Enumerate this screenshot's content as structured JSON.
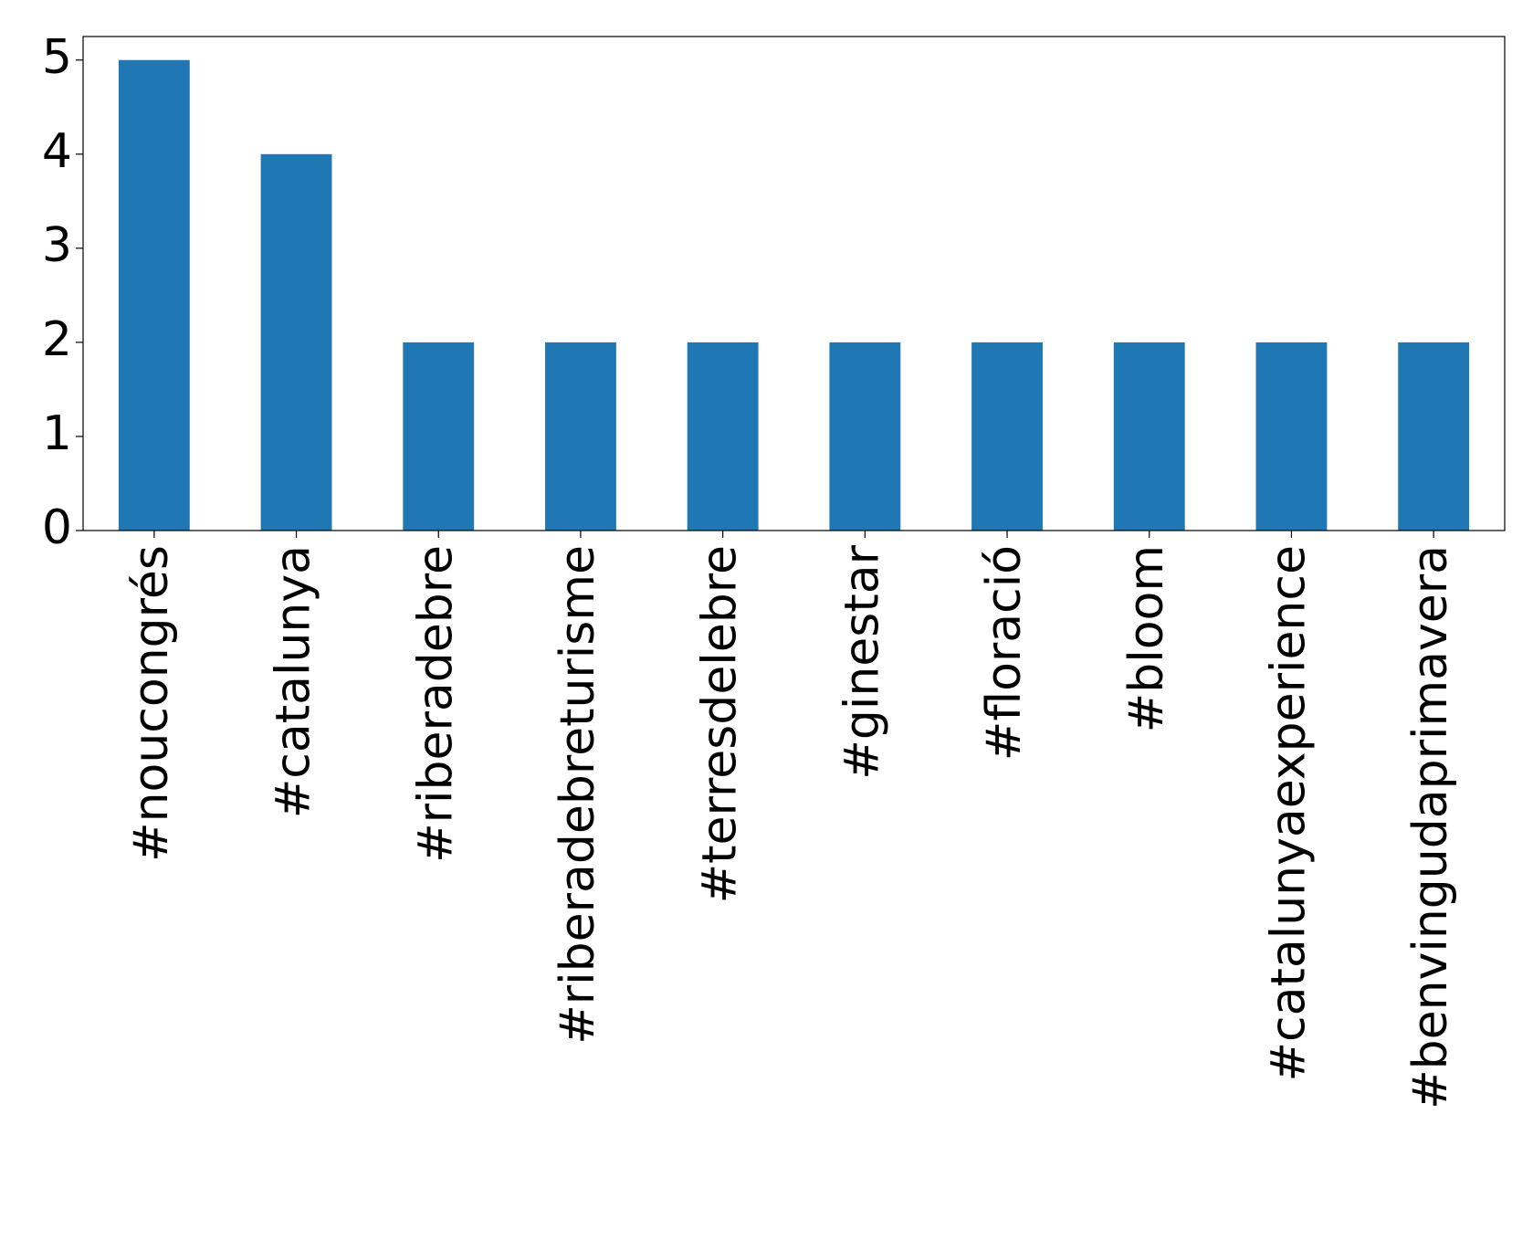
{
  "chart_data": {
    "type": "bar",
    "categories": [
      "#noucongrés",
      "#catalunya",
      "#riberadebre",
      "#riberadebreturisme",
      "#terresdelebre",
      "#ginestar",
      "#floració",
      "#bloom",
      "#catalunyaexperience",
      "#benvingudaprimavera"
    ],
    "values": [
      5,
      4,
      2,
      2,
      2,
      2,
      2,
      2,
      2,
      2
    ],
    "color": "#1f77b4",
    "ylim": [
      0,
      5.25
    ],
    "yticks": [
      0,
      1,
      2,
      3,
      4,
      5
    ],
    "grid": false
  }
}
